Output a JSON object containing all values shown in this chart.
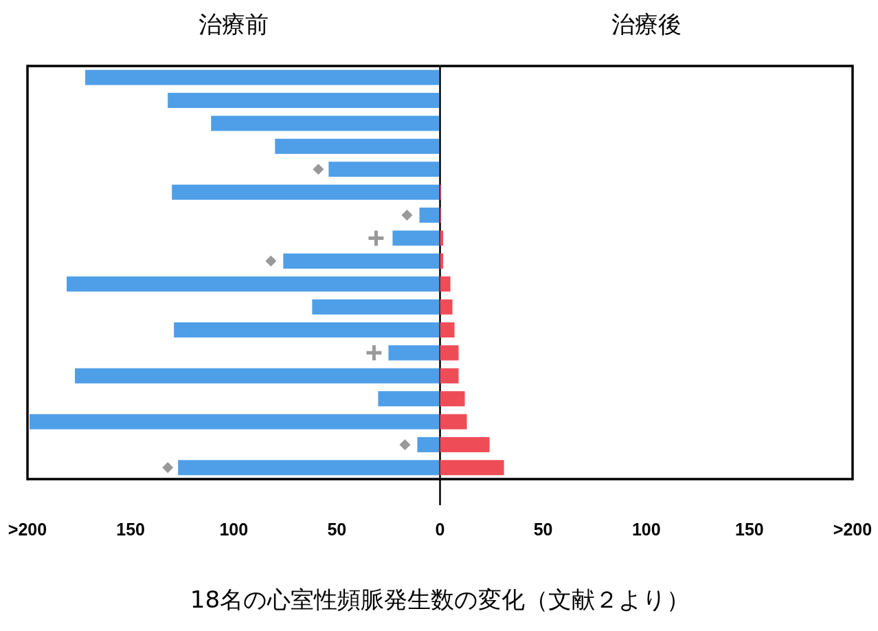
{
  "chart_data": [
    {
      "type": "bar",
      "orientation": "horizontal",
      "title": "治療前",
      "categories": [
        null,
        null,
        null,
        null,
        null,
        null,
        null,
        null,
        null,
        null,
        null,
        null,
        null,
        null,
        null,
        null,
        null,
        null
      ],
      "xlim": [
        200,
        0
      ],
      "xticks": [
        {
          "value": 200,
          "label": ">200"
        },
        150,
        100,
        50,
        0
      ],
      "series": [
        {
          "color": "#4f9fe8",
          "values": [
            172,
            132,
            111,
            80,
            54,
            130,
            10,
            23,
            76,
            181,
            62,
            129,
            25,
            177,
            30,
            199,
            11,
            127
          ]
        },
        {
          "type": "scatter",
          "marker": "diamond",
          "color": "#999999",
          "values": [
            null,
            null,
            null,
            null,
            59,
            null,
            16,
            null,
            82,
            null,
            null,
            null,
            null,
            null,
            null,
            null,
            17,
            132
          ]
        },
        {
          "type": "scatter",
          "marker": "cross",
          "color": "#999999",
          "values": [
            null,
            null,
            null,
            null,
            null,
            null,
            null,
            31,
            null,
            null,
            null,
            null,
            32,
            null,
            null,
            null,
            null,
            null
          ]
        }
      ],
      "annotations": [
        "18名の心室性頻脈発生数の変化（文献２より）"
      ]
    },
    {
      "type": "bar",
      "orientation": "horizontal",
      "title": "治療後",
      "categories": [
        null,
        null,
        null,
        null,
        null,
        null,
        null,
        null,
        null,
        null,
        null,
        null,
        null,
        null,
        null,
        null,
        null,
        null
      ],
      "xlim": [
        0,
        200
      ],
      "xticks": [
        50,
        100,
        150,
        {
          "value": 200,
          "label": ">200"
        }
      ],
      "series": [
        {
          "color": "#ee4d58",
          "values": [
            0,
            0,
            0,
            0,
            0,
            0.5,
            0.5,
            1.5,
            1.5,
            5,
            6,
            7,
            9,
            9,
            12,
            13,
            24,
            31
          ]
        }
      ]
    }
  ]
}
